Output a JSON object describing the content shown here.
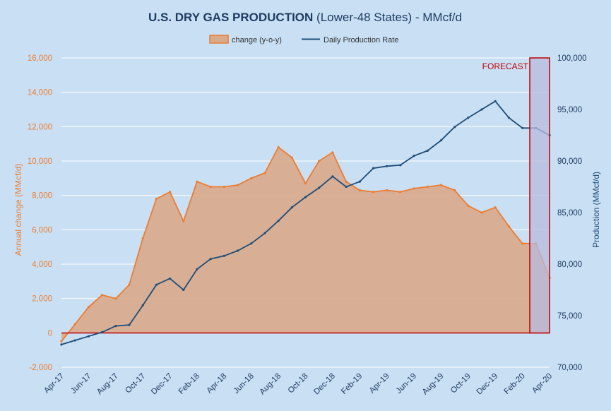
{
  "chart_data": {
    "type": "line",
    "title_bold": "U.S. DRY GAS PRODUCTION",
    "title_rest": " (Lower-48 States) - MMcf/d",
    "xlabel": "",
    "ylabel_left": "Annual change (MMcf/d)",
    "ylabel_right": "Production (MMcf/d)",
    "ylim_left": [
      -2000,
      16000
    ],
    "ylim_right": [
      70000,
      100000
    ],
    "yticks_left": [
      "-2,000",
      "0",
      "2,000",
      "4,000",
      "6,000",
      "8,000",
      "10,000",
      "12,000",
      "14,000",
      "16,000"
    ],
    "yticks_right": [
      "70,000",
      "75,000",
      "80,000",
      "85,000",
      "90,000",
      "95,000",
      "100,000"
    ],
    "xticks": [
      "Apr-17",
      "Jun-17",
      "Aug-17",
      "Oct-17",
      "Dec-17",
      "Feb-18",
      "Apr-18",
      "Jun-18",
      "Aug-18",
      "Oct-18",
      "Dec-18",
      "Feb-19",
      "Apr-19",
      "Jun-19",
      "Aug-19",
      "Oct-19",
      "Dec-19",
      "Feb-20",
      "Apr-20"
    ],
    "grid": true,
    "legend_position": "top",
    "forecast_label": "FORECAST",
    "forecast_start": "Feb-20 (mid)",
    "colors": {
      "change": "#ed7d31",
      "change_fill": "#d9a98a",
      "production": "#1f4e79",
      "forecast_border": "#c00000",
      "forecast_fill": "#b7b9de"
    },
    "series": [
      {
        "name": "change (y-o-y)",
        "axis": "left",
        "style": "area",
        "x": [
          "Apr-17",
          "May-17",
          "Jun-17",
          "Jul-17",
          "Aug-17",
          "Sep-17",
          "Oct-17",
          "Nov-17",
          "Dec-17",
          "Jan-18",
          "Feb-18",
          "Mar-18",
          "Apr-18",
          "May-18",
          "Jun-18",
          "Jul-18",
          "Aug-18",
          "Sep-18",
          "Oct-18",
          "Nov-18",
          "Dec-18",
          "Jan-19",
          "Feb-19",
          "Mar-19",
          "Apr-19",
          "May-19",
          "Jun-19",
          "Jul-19",
          "Aug-19",
          "Sep-19",
          "Oct-19",
          "Nov-19",
          "Dec-19",
          "Jan-20",
          "Feb-20",
          "Mar-20",
          "Apr-20"
        ],
        "values": [
          -500,
          500,
          1500,
          2200,
          2000,
          2800,
          5500,
          7800,
          8200,
          6500,
          8800,
          8500,
          8500,
          8600,
          9000,
          9300,
          10800,
          10200,
          8700,
          10000,
          10500,
          8800,
          8300,
          8200,
          8300,
          8200,
          8400,
          8500,
          8600,
          8300,
          7400,
          7000,
          7300,
          6200,
          5200,
          5200,
          3200
        ]
      },
      {
        "name": "Daily Production Rate",
        "axis": "right",
        "style": "line",
        "x": [
          "Apr-17",
          "May-17",
          "Jun-17",
          "Jul-17",
          "Aug-17",
          "Sep-17",
          "Oct-17",
          "Nov-17",
          "Dec-17",
          "Jan-18",
          "Feb-18",
          "Mar-18",
          "Apr-18",
          "May-18",
          "Jun-18",
          "Jul-18",
          "Aug-18",
          "Sep-18",
          "Oct-18",
          "Nov-18",
          "Dec-18",
          "Jan-19",
          "Feb-19",
          "Mar-19",
          "Apr-19",
          "May-19",
          "Jun-19",
          "Jul-19",
          "Aug-19",
          "Sep-19",
          "Oct-19",
          "Nov-19",
          "Dec-19",
          "Jan-20",
          "Feb-20",
          "Mar-20",
          "Apr-20"
        ],
        "values": [
          72200,
          72600,
          73000,
          73400,
          74000,
          74100,
          76000,
          78000,
          78600,
          77500,
          79500,
          80500,
          80800,
          81300,
          82000,
          83000,
          84200,
          85500,
          86500,
          87400,
          88500,
          87500,
          88000,
          89300,
          89500,
          89600,
          90500,
          91000,
          92000,
          93300,
          94200,
          95000,
          95800,
          94200,
          93200,
          93200,
          92500
        ]
      }
    ]
  }
}
